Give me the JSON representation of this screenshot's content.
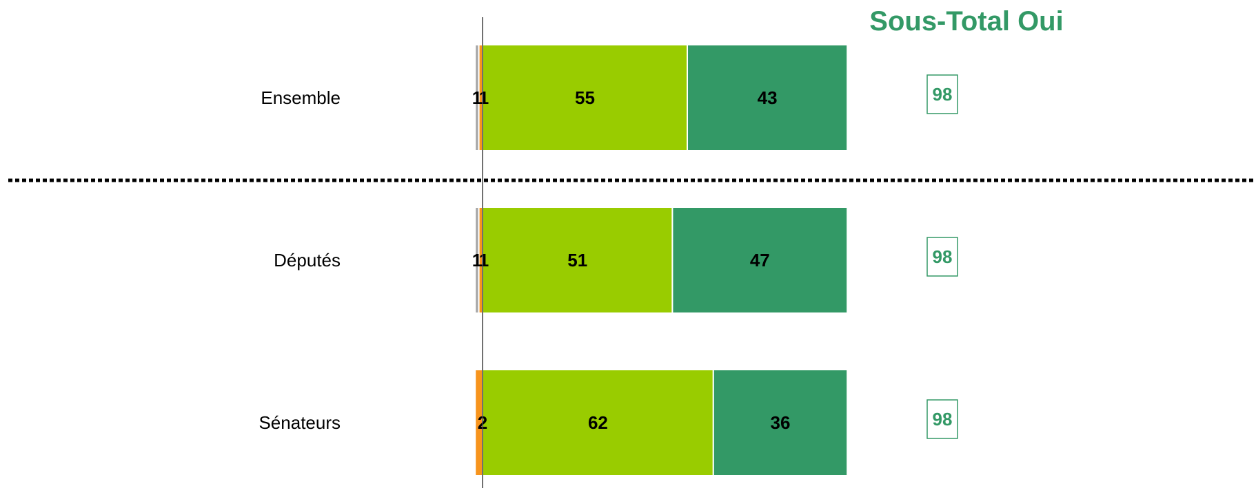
{
  "chart_data": {
    "type": "bar",
    "orientation": "horizontal",
    "stacked": true,
    "header": "Sous-Total Oui",
    "categories": [
      "Ensemble",
      "Députés",
      "Sénateurs"
    ],
    "series": [
      {
        "values": [
          1,
          1,
          0
        ],
        "color": "#A6A6A6"
      },
      {
        "values": [
          1,
          1,
          2
        ],
        "color": "#F7941D"
      },
      {
        "values": [
          55,
          51,
          62
        ],
        "color": "#99CC00"
      },
      {
        "values": [
          43,
          47,
          36
        ],
        "color": "#339966"
      }
    ],
    "segment_labels": [
      [
        "1",
        "1",
        "55",
        "43"
      ],
      [
        "1",
        "1",
        "51",
        "47"
      ],
      [
        "",
        "2",
        "62",
        "36"
      ]
    ],
    "subtotals": [
      "98",
      "98",
      "98"
    ],
    "separator_after_category": "Ensemble",
    "grid": false,
    "legend": "none"
  }
}
